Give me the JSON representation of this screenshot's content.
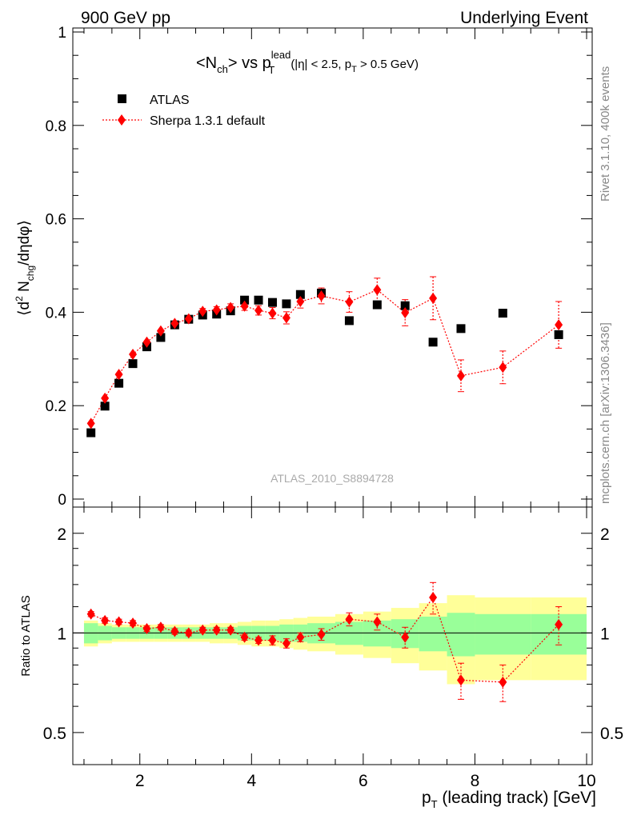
{
  "header": {
    "left": "900 GeV pp",
    "right": "Underlying Event"
  },
  "side_labels": {
    "rivet": "Rivet 3.1.10,  400k events",
    "mcplots": "mcplots.cern.ch [arXiv:1306.3436]"
  },
  "watermark": "ATLAS_2010_S8894728",
  "colors": {
    "mc": "#ff0000",
    "data": "#000000",
    "band_inner": "#99ff99",
    "band_outer": "#ffff99",
    "side_text": "#888888"
  },
  "chart_data": [
    {
      "type": "scatter",
      "panel": "main",
      "title": {
        "prefix": "<N",
        "prefix_sub": "ch",
        "mid": "> vs p",
        "mid_sup": "lead",
        "mid_sub": "T",
        "cut_a": "(|η| < 2.5, p",
        "cut_sub": "T",
        "cut_b": " > 0.5 GeV)"
      },
      "ylabel": {
        "a": "⟨d",
        "sup": "2",
        "b": " N",
        "sub": "chg",
        "c": "/dηdφ⟩"
      },
      "xlim": [
        0.8,
        10.1
      ],
      "ylim": [
        0,
        1
      ],
      "y_ticks": [
        0,
        0.2,
        0.4,
        0.6,
        0.8,
        1
      ],
      "y_tick_labels": [
        "0",
        "0.2",
        "0.4",
        "0.6",
        "0.8",
        "1"
      ],
      "legend": {
        "position": "top-left",
        "data_label": "ATLAS",
        "mc_label": "Sherpa 1.3.1 default"
      },
      "series": [
        {
          "name": "ATLAS",
          "marker": "square",
          "x": [
            1.125,
            1.375,
            1.625,
            1.875,
            2.125,
            2.375,
            2.625,
            2.875,
            3.125,
            3.375,
            3.625,
            3.875,
            4.125,
            4.375,
            4.625,
            4.875,
            5.25,
            5.75,
            6.25,
            6.75,
            7.25,
            7.75,
            8.5,
            9.5
          ],
          "y": [
            0.142,
            0.199,
            0.248,
            0.29,
            0.326,
            0.346,
            0.373,
            0.385,
            0.394,
            0.396,
            0.403,
            0.426,
            0.426,
            0.421,
            0.418,
            0.438,
            0.441,
            0.382,
            0.416,
            0.414,
            0.336,
            0.365,
            0.398,
            0.352
          ]
        },
        {
          "name": "Sherpa 1.3.1 default",
          "marker": "diamond",
          "x": [
            1.125,
            1.375,
            1.625,
            1.875,
            2.125,
            2.375,
            2.625,
            2.875,
            3.125,
            3.375,
            3.625,
            3.875,
            4.125,
            4.375,
            4.625,
            4.875,
            5.25,
            5.75,
            6.25,
            6.75,
            7.25,
            7.75,
            8.5,
            9.5
          ],
          "y": [
            0.162,
            0.216,
            0.267,
            0.31,
            0.336,
            0.36,
            0.376,
            0.386,
            0.402,
            0.405,
            0.41,
            0.413,
            0.404,
            0.398,
            0.388,
            0.423,
            0.435,
            0.422,
            0.448,
            0.399,
            0.43,
            0.264,
            0.282,
            0.373
          ],
          "err": [
            0.003,
            0.003,
            0.004,
            0.004,
            0.004,
            0.004,
            0.005,
            0.005,
            0.006,
            0.007,
            0.008,
            0.009,
            0.01,
            0.012,
            0.013,
            0.014,
            0.017,
            0.022,
            0.025,
            0.028,
            0.046,
            0.034,
            0.035,
            0.05
          ]
        }
      ]
    },
    {
      "type": "scatter",
      "panel": "ratio",
      "ylabel": "Ratio to ATLAS",
      "xlabel": {
        "a": "p",
        "sub": "T",
        "b": " (leading track) [GeV]"
      },
      "xlim": [
        0.8,
        10.1
      ],
      "ylim": [
        0.4,
        2.4
      ],
      "y_scale": "log",
      "y_ticks": [
        0.5,
        1,
        2
      ],
      "y_tick_labels": [
        "0.5",
        "1",
        "2"
      ],
      "x_ticks": [
        2,
        4,
        6,
        8,
        10
      ],
      "x_tick_labels": [
        "2",
        "4",
        "6",
        "8",
        "10"
      ],
      "bands": {
        "edges": [
          1.0,
          1.25,
          1.5,
          1.75,
          2.0,
          2.25,
          2.5,
          2.75,
          3.0,
          3.25,
          3.5,
          3.75,
          4.0,
          4.25,
          4.5,
          4.75,
          5.0,
          5.5,
          6.0,
          6.5,
          7.0,
          7.5,
          8.0,
          9.0,
          10.0
        ],
        "inner": [
          0.07,
          0.05,
          0.04,
          0.04,
          0.04,
          0.04,
          0.04,
          0.04,
          0.04,
          0.04,
          0.04,
          0.05,
          0.05,
          0.05,
          0.06,
          0.06,
          0.07,
          0.08,
          0.09,
          0.1,
          0.12,
          0.15,
          0.14,
          0.14
        ],
        "outer": [
          0.09,
          0.07,
          0.06,
          0.06,
          0.06,
          0.06,
          0.06,
          0.06,
          0.06,
          0.07,
          0.07,
          0.08,
          0.09,
          0.09,
          0.1,
          0.11,
          0.12,
          0.14,
          0.16,
          0.19,
          0.23,
          0.3,
          0.28,
          0.28
        ]
      },
      "series": [
        {
          "name": "Sherpa 1.3.1 default / ATLAS",
          "marker": "diamond",
          "x": [
            1.125,
            1.375,
            1.625,
            1.875,
            2.125,
            2.375,
            2.625,
            2.875,
            3.125,
            3.375,
            3.625,
            3.875,
            4.125,
            4.375,
            4.625,
            4.875,
            5.25,
            5.75,
            6.25,
            6.75,
            7.25,
            7.75,
            8.5,
            9.5
          ],
          "y": [
            1.14,
            1.09,
            1.08,
            1.07,
            1.03,
            1.04,
            1.01,
            1.0,
            1.02,
            1.02,
            1.02,
            0.97,
            0.95,
            0.95,
            0.93,
            0.97,
            0.99,
            1.1,
            1.08,
            0.97,
            1.28,
            0.72,
            0.71,
            1.06
          ],
          "err": [
            0.02,
            0.02,
            0.02,
            0.02,
            0.02,
            0.02,
            0.02,
            0.02,
            0.02,
            0.02,
            0.02,
            0.02,
            0.02,
            0.03,
            0.03,
            0.03,
            0.04,
            0.05,
            0.06,
            0.07,
            0.14,
            0.09,
            0.09,
            0.14
          ]
        }
      ]
    }
  ]
}
